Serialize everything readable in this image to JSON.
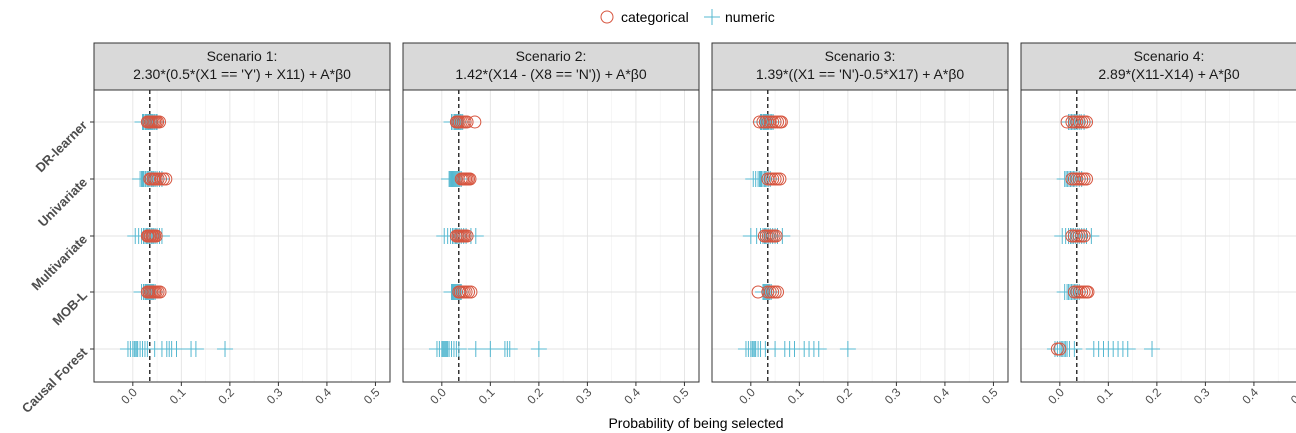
{
  "chart_data": {
    "type": "scatter",
    "xlabel": "Probability of being selected",
    "xlim": [
      -0.08,
      0.53
    ],
    "xticks": [
      0.0,
      0.1,
      0.2,
      0.3,
      0.4,
      0.5
    ],
    "xtick_labels": [
      "0.0",
      "0.1",
      "0.2",
      "0.3",
      "0.4",
      "0.5"
    ],
    "reference_line": 0.035,
    "methods": [
      "DR-learner",
      "Univariate",
      "Multivariate",
      "MOB-L",
      "Causal Forest"
    ],
    "legend": {
      "position": "top",
      "entries": [
        {
          "label": "categorical",
          "marker": "circle",
          "color": "#d7553f"
        },
        {
          "label": "numeric",
          "marker": "plus",
          "color": "#55b8d0"
        }
      ]
    },
    "series_colors": {
      "categorical": "#d7553f",
      "numeric": "#55b8d0"
    },
    "grid": true,
    "panels": [
      {
        "title_line1": "Scenario 1:",
        "title_line2": "2.30*(0.5*(X1 == 'Y') + X11) + A*β0",
        "rows": [
          {
            "method": "DR-learner",
            "numeric": [
              0.02,
              0.022,
              0.025,
              0.027,
              0.028,
              0.03,
              0.032,
              0.033,
              0.035,
              0.037,
              0.038,
              0.04,
              0.042,
              0.045,
              0.048,
              0.05
            ],
            "categorical": [
              0.03,
              0.033,
              0.036,
              0.039,
              0.042,
              0.045,
              0.048,
              0.051,
              0.055
            ]
          },
          {
            "method": "Univariate",
            "numeric": [
              0.015,
              0.018,
              0.02,
              0.022,
              0.025,
              0.027,
              0.03,
              0.032,
              0.035,
              0.038,
              0.04,
              0.043,
              0.046,
              0.05,
              0.055,
              0.06
            ],
            "categorical": [
              0.035,
              0.038,
              0.042,
              0.045,
              0.048,
              0.052,
              0.057,
              0.063,
              0.068
            ]
          },
          {
            "method": "Multivariate",
            "numeric": [
              0.005,
              0.012,
              0.018,
              0.022,
              0.025,
              0.028,
              0.03,
              0.033,
              0.035,
              0.038,
              0.04,
              0.043,
              0.046,
              0.05,
              0.055,
              0.06
            ],
            "categorical": [
              0.03,
              0.032,
              0.035,
              0.037,
              0.04,
              0.042,
              0.045,
              0.048
            ]
          },
          {
            "method": "MOB-L",
            "numeric": [
              0.018,
              0.022,
              0.025,
              0.027,
              0.029,
              0.031,
              0.033,
              0.035,
              0.037,
              0.039,
              0.041,
              0.043,
              0.046
            ],
            "categorical": [
              0.03,
              0.033,
              0.036,
              0.039,
              0.042,
              0.045,
              0.048,
              0.052,
              0.056
            ]
          },
          {
            "method": "Causal Forest",
            "numeric": [
              -0.01,
              -0.005,
              0.0,
              0.003,
              0.005,
              0.008,
              0.01,
              0.015,
              0.02,
              0.025,
              0.03,
              0.045,
              0.06,
              0.07,
              0.075,
              0.08,
              0.09,
              0.12,
              0.13,
              0.19
            ],
            "categorical": []
          }
        ]
      },
      {
        "title_line1": "Scenario 2:",
        "title_line2": "1.42*(X14 - (X8 == 'N')) + A*β0",
        "rows": [
          {
            "method": "DR-learner",
            "numeric": [
              0.02,
              0.023,
              0.026,
              0.028,
              0.03,
              0.032,
              0.034,
              0.036,
              0.038,
              0.04,
              0.043
            ],
            "categorical": [
              0.03,
              0.033,
              0.036,
              0.04,
              0.044,
              0.048,
              0.052,
              0.068
            ]
          },
          {
            "method": "Univariate",
            "numeric": [
              0.015,
              0.017,
              0.019,
              0.021,
              0.023,
              0.025,
              0.027,
              0.029,
              0.031,
              0.033,
              0.035,
              0.037,
              0.04
            ],
            "categorical": [
              0.04,
              0.043,
              0.046,
              0.049,
              0.052,
              0.055,
              0.058
            ]
          },
          {
            "method": "Multivariate",
            "numeric": [
              0.005,
              0.012,
              0.018,
              0.022,
              0.025,
              0.028,
              0.03,
              0.033,
              0.036,
              0.04,
              0.045,
              0.05,
              0.06,
              0.07
            ],
            "categorical": [
              0.03,
              0.033,
              0.036,
              0.039,
              0.042,
              0.045,
              0.048,
              0.052
            ]
          },
          {
            "method": "MOB-L",
            "numeric": [
              0.02,
              0.022,
              0.024,
              0.026,
              0.028,
              0.03,
              0.032,
              0.034,
              0.036,
              0.038,
              0.04
            ],
            "categorical": [
              0.035,
              0.038,
              0.042,
              0.046,
              0.05,
              0.055,
              0.06
            ]
          },
          {
            "method": "Causal Forest",
            "numeric": [
              -0.01,
              -0.005,
              0.0,
              0.002,
              0.004,
              0.006,
              0.008,
              0.01,
              0.012,
              0.015,
              0.02,
              0.025,
              0.03,
              0.035,
              0.07,
              0.1,
              0.13,
              0.135,
              0.14,
              0.2
            ],
            "categorical": []
          }
        ]
      },
      {
        "title_line1": "Scenario 3:",
        "title_line2": "1.39*((X1 == 'N')-0.5*X17) + A*β0",
        "rows": [
          {
            "method": "DR-learner",
            "numeric": [
              0.02,
              0.022,
              0.025,
              0.027,
              0.029,
              0.031,
              0.033,
              0.035,
              0.037,
              0.04,
              0.043,
              0.046
            ],
            "categorical": [
              0.018,
              0.025,
              0.03,
              0.035,
              0.04,
              0.045,
              0.05,
              0.055,
              0.06,
              0.063
            ]
          },
          {
            "method": "Univariate",
            "numeric": [
              0.005,
              0.01,
              0.015,
              0.018,
              0.02,
              0.022,
              0.025,
              0.028,
              0.03,
              0.033,
              0.036,
              0.04
            ],
            "categorical": [
              0.035,
              0.04,
              0.045,
              0.05,
              0.055,
              0.06
            ]
          },
          {
            "method": "Multivariate",
            "numeric": [
              0.0,
              0.012,
              0.02,
              0.025,
              0.028,
              0.03,
              0.033,
              0.036,
              0.04,
              0.045,
              0.05,
              0.055,
              0.065
            ],
            "categorical": [
              0.028,
              0.032,
              0.036,
              0.04,
              0.044,
              0.048,
              0.052
            ]
          },
          {
            "method": "MOB-L",
            "numeric": [
              0.025,
              0.027,
              0.029,
              0.031,
              0.033,
              0.035,
              0.037,
              0.039,
              0.042
            ],
            "categorical": [
              0.015,
              0.035,
              0.04,
              0.045,
              0.05,
              0.055
            ]
          },
          {
            "method": "Causal Forest",
            "numeric": [
              -0.01,
              -0.005,
              0.0,
              0.003,
              0.005,
              0.008,
              0.01,
              0.015,
              0.02,
              0.03,
              0.05,
              0.07,
              0.08,
              0.09,
              0.11,
              0.12,
              0.13,
              0.14,
              0.2
            ],
            "categorical": []
          }
        ]
      },
      {
        "title_line1": "Scenario 4:",
        "title_line2": "2.89*(X11-X14) + A*β0",
        "rows": [
          {
            "method": "DR-learner",
            "numeric": [
              0.018,
              0.021,
              0.024,
              0.027,
              0.03,
              0.033,
              0.036,
              0.04,
              0.044,
              0.05
            ],
            "categorical": [
              0.015,
              0.025,
              0.03,
              0.035,
              0.04,
              0.045,
              0.05,
              0.055
            ]
          },
          {
            "method": "Univariate",
            "numeric": [
              0.01,
              0.013,
              0.016,
              0.019,
              0.022,
              0.025,
              0.028,
              0.031,
              0.035,
              0.04,
              0.045
            ],
            "categorical": [
              0.025,
              0.03,
              0.035,
              0.04,
              0.045,
              0.05,
              0.055
            ]
          },
          {
            "method": "Multivariate",
            "numeric": [
              0.005,
              0.012,
              0.018,
              0.022,
              0.025,
              0.028,
              0.032,
              0.036,
              0.04,
              0.045,
              0.05,
              0.055,
              0.065
            ],
            "categorical": [
              0.025,
              0.03,
              0.035,
              0.04,
              0.045,
              0.05
            ]
          },
          {
            "method": "MOB-L",
            "numeric": [
              0.01,
              0.015,
              0.018,
              0.021,
              0.024,
              0.027,
              0.03,
              0.033,
              0.036,
              0.04
            ],
            "categorical": [
              0.03,
              0.035,
              0.04,
              0.045,
              0.05,
              0.055,
              0.058
            ]
          },
          {
            "method": "Causal Forest",
            "numeric": [
              -0.01,
              -0.005,
              0.0,
              0.003,
              0.006,
              0.009,
              0.012,
              0.015,
              0.02,
              0.03,
              0.07,
              0.08,
              0.09,
              0.1,
              0.11,
              0.12,
              0.13,
              0.14,
              0.19
            ],
            "categorical": [
              -0.005,
              0.0
            ]
          }
        ]
      }
    ]
  }
}
